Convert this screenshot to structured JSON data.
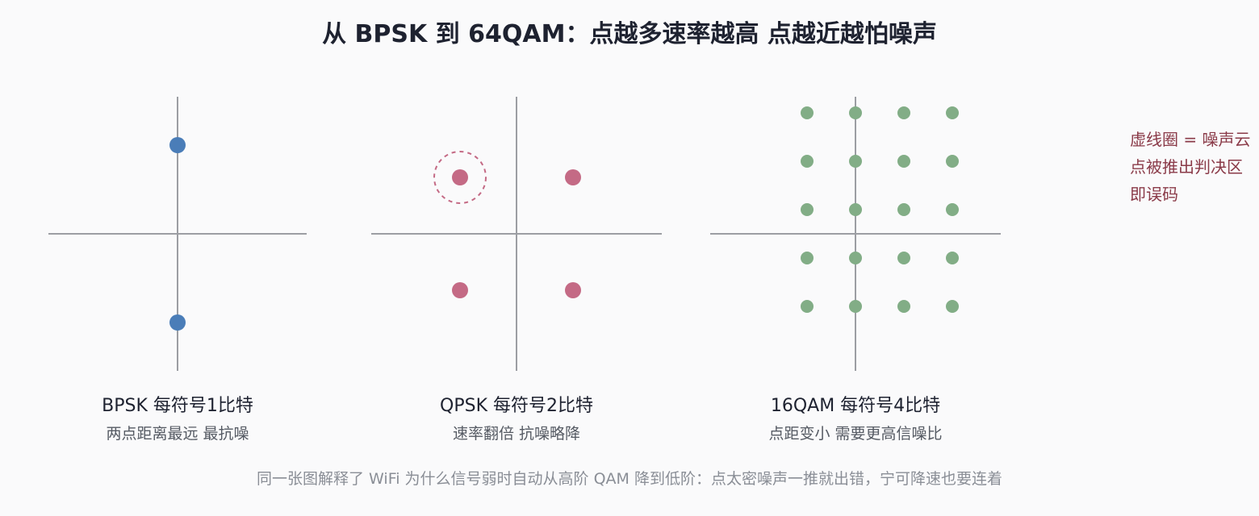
{
  "title": "从 BPSK 到 64QAM：点越多速率越高 点越近越怕噪声",
  "colors": {
    "bpsk": "#4a7db8",
    "qpsk": "#c46a85",
    "qam16": "#82ad86",
    "axis": "#9c9ea3",
    "note": "#8a3a48"
  },
  "panels": [
    {
      "name": "BPSK",
      "label": "BPSK 每符号1比特",
      "sublabel": "两点距离最远 最抗噪"
    },
    {
      "name": "QPSK",
      "label": "QPSK 每符号2比特",
      "sublabel": "速率翻倍 抗噪略降"
    },
    {
      "name": "16QAM",
      "label": "16QAM 每符号4比特",
      "sublabel": "点距变小 需要更高信噪比"
    }
  ],
  "note": [
    "虚线圈 = 噪声云",
    "点被推出判决区",
    "即误码"
  ],
  "caption": "同一张图解释了 WiFi 为什么信号弱时自动从高阶 QAM 降到低阶：点太密噪声一推就出错，宁可降速也要连着"
}
